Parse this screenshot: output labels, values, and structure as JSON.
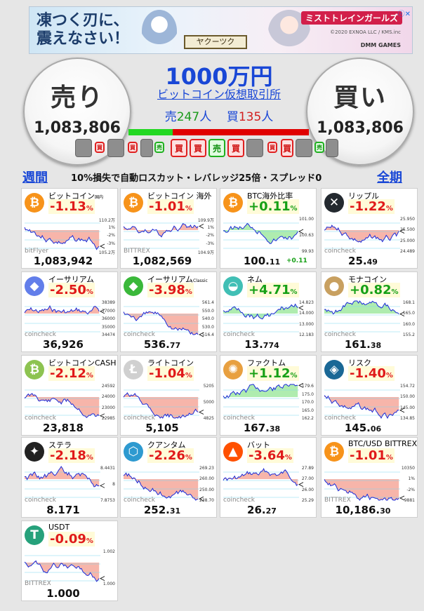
{
  "ad": {
    "headline_line1": "凍つく刃に、",
    "headline_line2": "震えなさい！",
    "button": "ヤクーツク",
    "logo": "ミストトレインガールズ",
    "copyright": "©2020 EXNOA LLC / KMS.inc",
    "brand": "DMM GAMES",
    "close": "ⓘ✕"
  },
  "header": {
    "sell_label": "売り",
    "sell_value": "1,083,806",
    "buy_label": "買い",
    "buy_value": "1,083,806",
    "prize": "1000万円",
    "subtitle": "ビットコイン仮想取引所",
    "sell_count_label": "売",
    "sell_count": "247",
    "buy_count_label": "買",
    "buy_count": "135",
    "people_unit": "人",
    "sell_ratio": 0.2466,
    "chip_buy": "買",
    "chip_sell": "売"
  },
  "rules": {
    "weekly": "週間",
    "text": "10%損失で自動ロスカット・レバレッジ25倍・スプレッド0",
    "full": "全期"
  },
  "colors": {
    "neg": "#e01a1a",
    "pos": "#16a016",
    "link": "#1947d6"
  },
  "cards": [
    {
      "name": "ビットコイン",
      "name_sup": "国内",
      "icon": "bitcoin-icon",
      "glyph": "₿",
      "icon_color": "#f7931a",
      "change": "-1.13",
      "dir": "neg",
      "source": "bitFlyer",
      "price": "1,083,942",
      "price_small": "",
      "ticks": [
        "110.2万",
        "1%",
        "-2%",
        "-3%",
        "105.2万"
      ],
      "extra": ""
    },
    {
      "name": "ビットコイン 海外",
      "name_sup": "",
      "icon": "bitcoin-icon",
      "glyph": "₿",
      "icon_color": "#f7931a",
      "change": "-1.01",
      "dir": "neg",
      "source": "BITTREX",
      "price": "1,082,569",
      "price_small": "",
      "ticks": [
        "109.9万",
        "1%",
        "-2%",
        "-3%",
        "104.9万"
      ],
      "extra": ""
    },
    {
      "name": "BTC海外比率",
      "name_sup": "",
      "icon": "bitcoin-icon",
      "glyph": "₿",
      "icon_color": "#f7931a",
      "change": "+0.11",
      "dir": "pos",
      "source": "",
      "price": "100.",
      "price_small": "11",
      "ticks": [
        "101.00",
        "100.63",
        "99.93"
      ],
      "extra": "+0.11"
    },
    {
      "name": "リップル",
      "name_sup": "",
      "icon": "ripple-icon",
      "glyph": "✕",
      "icon_color": "#23292f",
      "change": "-1.22",
      "dir": "neg",
      "source": "coincheck",
      "price": "25.",
      "price_small": "49",
      "ticks": [
        "25.950",
        "25.500",
        "25.000",
        "24.489"
      ],
      "extra": ""
    },
    {
      "name": "イーサリアム",
      "name_sup": "",
      "icon": "ethereum-icon",
      "glyph": "◆",
      "icon_color": "#627eea",
      "change": "-2.50",
      "dir": "neg",
      "source": "coincheck",
      "price": "36,926",
      "price_small": "",
      "ticks": [
        "38389",
        "37000",
        "36000",
        "35000",
        "34474"
      ],
      "extra": ""
    },
    {
      "name": "イーサリアム",
      "name_sup": "Classic",
      "icon": "ethereum-classic-icon",
      "glyph": "◆",
      "icon_color": "#3ab83a",
      "change": "-3.98",
      "dir": "neg",
      "source": "coincheck",
      "price": "536.",
      "price_small": "77",
      "ticks": [
        "561.4",
        "550.0",
        "540.0",
        "530.0",
        "516.4"
      ],
      "extra": ""
    },
    {
      "name": "ネム",
      "name_sup": "",
      "icon": "nem-icon",
      "glyph": "◒",
      "icon_color": "#41bfb5",
      "change": "+4.71",
      "dir": "pos",
      "source": "coincheck",
      "price": "13.",
      "price_small": "774",
      "ticks": [
        "14.823",
        "14.000",
        "13.000",
        "12.183"
      ],
      "extra": ""
    },
    {
      "name": "モナコイン",
      "name_sup": "",
      "icon": "monacoin-icon",
      "glyph": "●",
      "icon_color": "#c8a060",
      "change": "+0.82",
      "dir": "pos",
      "source": "coincheck",
      "price": "161.",
      "price_small": "38",
      "ticks": [
        "168.1",
        "165.0",
        "160.0",
        "155.2"
      ],
      "extra": ""
    },
    {
      "name": "ビットコインCASH",
      "name_sup": "",
      "icon": "bitcoin-cash-icon",
      "glyph": "₿",
      "icon_color": "#8dc351",
      "change": "-2.12",
      "dir": "neg",
      "source": "coincheck",
      "price": "23,818",
      "price_small": "",
      "ticks": [
        "24592",
        "24000",
        "23000",
        "22985"
      ],
      "extra": ""
    },
    {
      "name": "ライトコイン",
      "name_sup": "",
      "icon": "litecoin-icon",
      "glyph": "Ł",
      "icon_color": "#d0d0d0",
      "change": "-1.04",
      "dir": "neg",
      "source": "coincheck",
      "price": "5,105",
      "price_small": "",
      "ticks": [
        "5205",
        "5000",
        "4825"
      ],
      "extra": ""
    },
    {
      "name": "ファクトム",
      "name_sup": "",
      "icon": "factom-icon",
      "glyph": "✺",
      "icon_color": "#e8a040",
      "change": "+1.12",
      "dir": "pos",
      "source": "coincheck",
      "price": "167.",
      "price_small": "38",
      "ticks": [
        "179.6",
        "175.0",
        "170.0",
        "165.0",
        "162.2"
      ],
      "extra": ""
    },
    {
      "name": "リスク",
      "name_sup": "",
      "icon": "lisk-icon",
      "glyph": "◈",
      "icon_color": "#1a6896",
      "change": "-1.40",
      "dir": "neg",
      "source": "coincheck",
      "price": "145.",
      "price_small": "06",
      "ticks": [
        "154.72",
        "150.00",
        "145.00",
        "134.85"
      ],
      "extra": ""
    },
    {
      "name": "ステラ",
      "name_sup": "",
      "icon": "stellar-icon",
      "glyph": "✦",
      "icon_color": "#222222",
      "change": "-2.18",
      "dir": "neg",
      "source": "coincheck",
      "price": "8.171",
      "price_small": "",
      "ticks": [
        "8.4431",
        "8",
        "7.8753"
      ],
      "extra": ""
    },
    {
      "name": "クアンタム",
      "name_sup": "",
      "icon": "qtum-icon",
      "glyph": "⬡",
      "icon_color": "#2e9ad0",
      "change": "-2.26",
      "dir": "neg",
      "source": "coincheck",
      "price": "252.",
      "price_small": "31",
      "ticks": [
        "269.23",
        "260.00",
        "250.00",
        "238.70"
      ],
      "extra": ""
    },
    {
      "name": "バット",
      "name_sup": "",
      "icon": "bat-icon",
      "glyph": "▲",
      "icon_color": "#ff5000",
      "change": "-3.64",
      "dir": "neg",
      "source": "coincheck",
      "price": "26.",
      "price_small": "27",
      "ticks": [
        "27.89",
        "27.00",
        "26.00",
        "25.29"
      ],
      "extra": ""
    },
    {
      "name": "BTC/USD BITTREX",
      "name_sup": "",
      "icon": "bitcoin-icon",
      "glyph": "₿",
      "icon_color": "#f7931a",
      "change": "-1.01",
      "dir": "neg",
      "source": "BITTREX",
      "price": "10,186.",
      "price_small": "30",
      "ticks": [
        "10350",
        "1%",
        "-2%",
        "9881"
      ],
      "extra": ""
    },
    {
      "name": "USDT",
      "name_sup": "",
      "icon": "tether-icon",
      "glyph": "T",
      "icon_color": "#26a17b",
      "change": "-0.09",
      "dir": "neg",
      "source": "BITTREX",
      "price": "1.000",
      "price_small": "",
      "ticks": [
        "1.002",
        "1.000"
      ],
      "extra": ""
    }
  ]
}
